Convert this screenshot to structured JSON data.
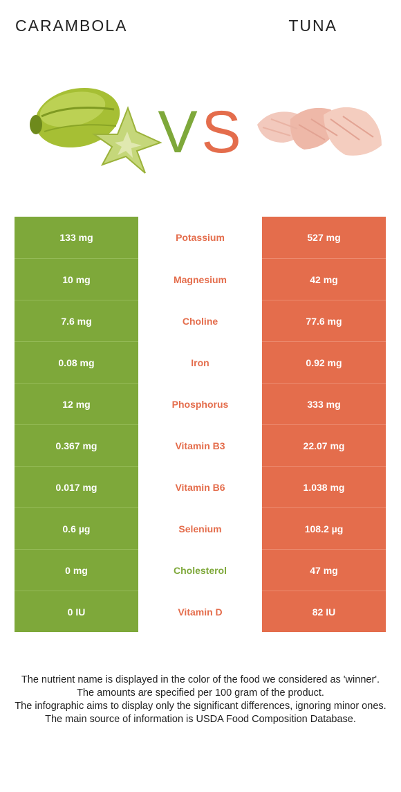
{
  "header": {
    "left_food": "CARAMBOLA",
    "right_food": "TUNA",
    "vs_v": "V",
    "vs_s": "S"
  },
  "colors": {
    "left_winner": "#7ea83a",
    "right_winner": "#e46d4c"
  },
  "rows": [
    {
      "left": "133 mg",
      "nutrient": "Potassium",
      "right": "527 mg",
      "winner": "right"
    },
    {
      "left": "10 mg",
      "nutrient": "Magnesium",
      "right": "42 mg",
      "winner": "right"
    },
    {
      "left": "7.6 mg",
      "nutrient": "Choline",
      "right": "77.6 mg",
      "winner": "right"
    },
    {
      "left": "0.08 mg",
      "nutrient": "Iron",
      "right": "0.92 mg",
      "winner": "right"
    },
    {
      "left": "12 mg",
      "nutrient": "Phosphorus",
      "right": "333 mg",
      "winner": "right"
    },
    {
      "left": "0.367 mg",
      "nutrient": "Vitamin B3",
      "right": "22.07 mg",
      "winner": "right"
    },
    {
      "left": "0.017 mg",
      "nutrient": "Vitamin B6",
      "right": "1.038 mg",
      "winner": "right"
    },
    {
      "left": "0.6 µg",
      "nutrient": "Selenium",
      "right": "108.2 µg",
      "winner": "right"
    },
    {
      "left": "0 mg",
      "nutrient": "Cholesterol",
      "right": "47 mg",
      "winner": "left"
    },
    {
      "left": "0 IU",
      "nutrient": "Vitamin D",
      "right": "82 IU",
      "winner": "right"
    }
  ],
  "footnote": {
    "line1": "The nutrient name is displayed in the color of the food we considered as 'winner'.",
    "line2": "The amounts are specified per 100 gram of the product.",
    "line3": "The infographic aims to display only the significant differences, ignoring minor ones.",
    "line4": "The main source of information is USDA Food Composition Database."
  }
}
